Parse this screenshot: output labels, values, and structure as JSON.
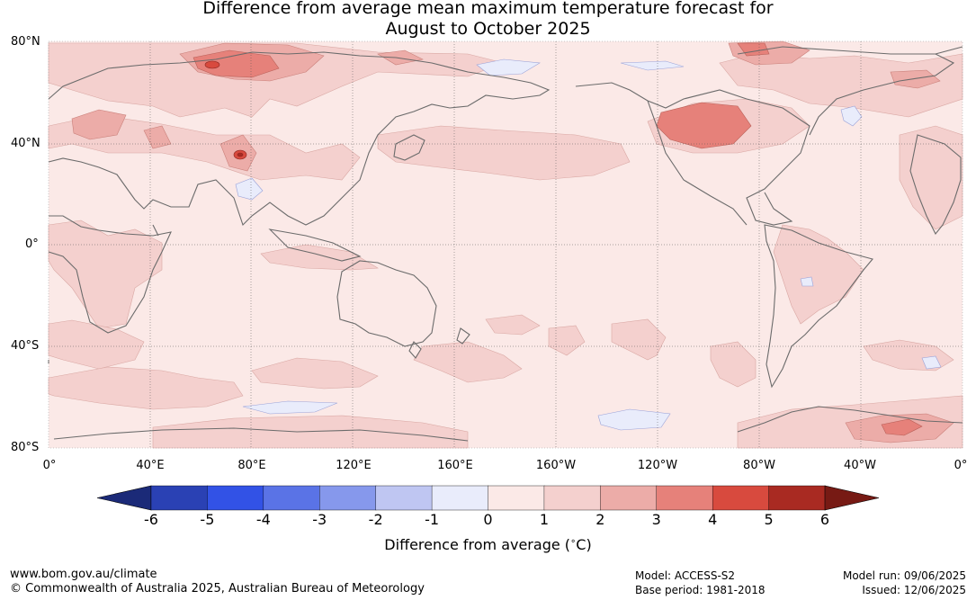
{
  "title_line1": "Difference from average mean maximum temperature forecast for",
  "title_line2": "August to October 2025",
  "lat_labels": [
    "80°N",
    "40°N",
    "0°",
    "40°S",
    "80°S"
  ],
  "lon_labels": [
    "0°",
    "40°E",
    "80°E",
    "120°E",
    "160°E",
    "160°W",
    "120°W",
    "80°W",
    "40°W",
    "0°"
  ],
  "colorbar": {
    "ticks": [
      "-6",
      "-5",
      "-4",
      "-3",
      "-2",
      "-1",
      "0",
      "1",
      "2",
      "3",
      "4",
      "5",
      "6"
    ],
    "colors": [
      "#1b2a78",
      "#2a41b4",
      "#3252e6",
      "#5a73e6",
      "#8698ec",
      "#bfc6f2",
      "#e9ecfb",
      "#fbe9e7",
      "#f4d0ce",
      "#ecaca8",
      "#e6817a",
      "#d84a3e",
      "#a92a22",
      "#771a14"
    ],
    "label": "Difference from average (",
    "label_unit": "C)",
    "label_degree": "∘"
  },
  "footer": {
    "url": "www.bom.gov.au/climate",
    "copyright": "© Commonwealth of Australia 2025, Australian Bureau of Meteorology",
    "model": "Model: ACCESS-S2",
    "base_period": "Base period: 1981-2018",
    "model_run": "Model run: 09/06/2025",
    "issued": "Issued: 12/06/2025"
  }
}
